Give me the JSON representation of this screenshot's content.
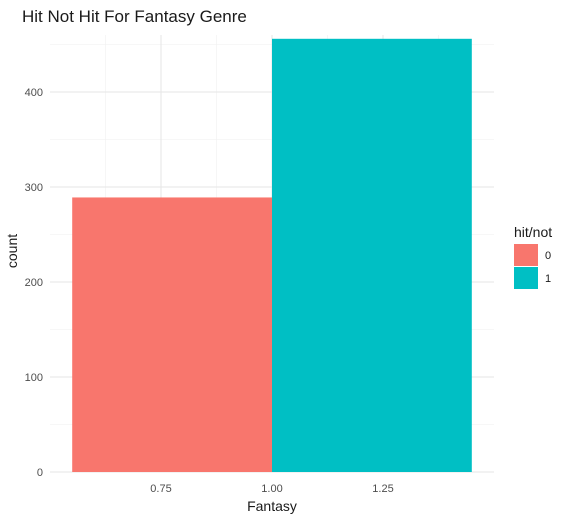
{
  "chart_data": {
    "type": "bar",
    "title": "Hit Not Hit For Fantasy Genre",
    "xlabel": "Fantasy",
    "ylabel": "count",
    "xlim": [
      0.5,
      1.5
    ],
    "ylim": [
      0,
      460
    ],
    "x_ticks": [
      0.75,
      1.0,
      1.25
    ],
    "x_tick_labels": [
      "0.75",
      "1.00",
      "1.25"
    ],
    "y_ticks": [
      0,
      100,
      200,
      300,
      400
    ],
    "y_tick_labels": [
      "0",
      "100",
      "200",
      "300",
      "400"
    ],
    "grid": true,
    "legend": {
      "title": "hit/not",
      "placement": "right",
      "entries": [
        {
          "label": "0",
          "color": "#F8766D"
        },
        {
          "label": "1",
          "color": "#00BFC4"
        }
      ]
    },
    "series": [
      {
        "name": "0",
        "x_start": 0.55,
        "x_end": 1.0,
        "value": 289,
        "color": "#F8766D"
      },
      {
        "name": "1",
        "x_start": 1.0,
        "x_end": 1.45,
        "value": 456,
        "color": "#00BFC4"
      }
    ]
  }
}
